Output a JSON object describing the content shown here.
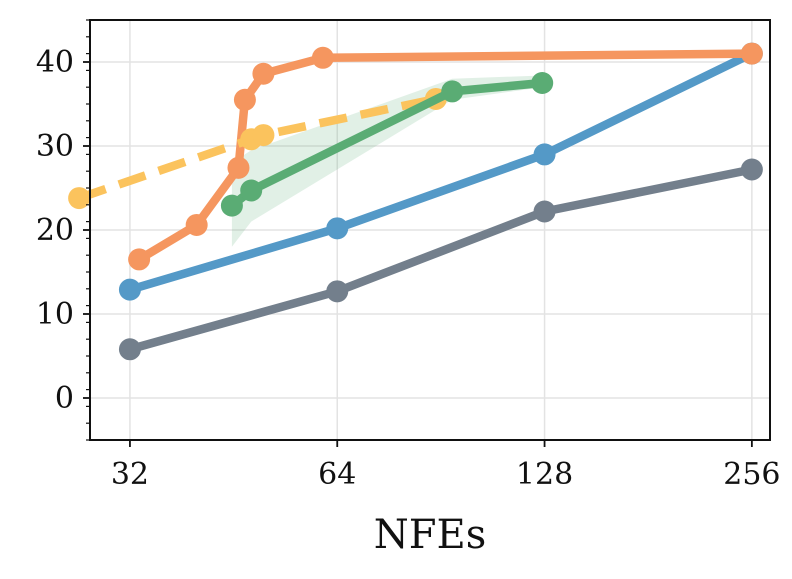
{
  "chart_data": {
    "type": "line",
    "title": "",
    "xlabel": "NFEs",
    "ylabel": "",
    "xscale": "log2",
    "xlim": [
      28,
      272
    ],
    "ylim": [
      -5,
      45
    ],
    "xticks": [
      32,
      64,
      128,
      256
    ],
    "xtick_labels": [
      "32",
      "64",
      "128",
      "256"
    ],
    "yticks": [
      0,
      10,
      20,
      30,
      40
    ],
    "ytick_labels": [
      "0",
      "10",
      "20",
      "30",
      "40"
    ],
    "grid": true,
    "legend": "none",
    "series": [
      {
        "name": "gray",
        "color": "#737f8c",
        "dashed": false,
        "x": [
          32,
          64,
          128,
          256
        ],
        "y": [
          5.8,
          12.7,
          22.2,
          27.2
        ],
        "band": null
      },
      {
        "name": "blue",
        "color": "#5499c7",
        "dashed": false,
        "x": [
          32,
          64,
          128,
          256
        ],
        "y": [
          12.9,
          20.2,
          29.0,
          41.0
        ],
        "band": null
      },
      {
        "name": "orange",
        "color": "#f5965f",
        "dashed": false,
        "x": [
          33,
          40,
          46,
          47,
          50,
          61,
          256
        ],
        "y": [
          16.5,
          20.6,
          27.4,
          35.5,
          38.6,
          40.5,
          41.0
        ],
        "band": null
      },
      {
        "name": "yellow-dashed",
        "color": "#fbc35d",
        "dashed": true,
        "x": [
          27,
          48,
          50,
          89
        ],
        "y": [
          23.8,
          30.8,
          31.3,
          35.6
        ],
        "band": null
      },
      {
        "name": "green",
        "color": "#5aac74",
        "dashed": false,
        "x": [
          45,
          48,
          94,
          127
        ],
        "y": [
          22.9,
          24.7,
          36.5,
          37.5
        ],
        "band": {
          "lower": [
            18.0,
            21.0,
            35.5,
            37.0
          ],
          "upper": [
            28.0,
            29.5,
            38.0,
            38.4
          ]
        }
      }
    ]
  }
}
